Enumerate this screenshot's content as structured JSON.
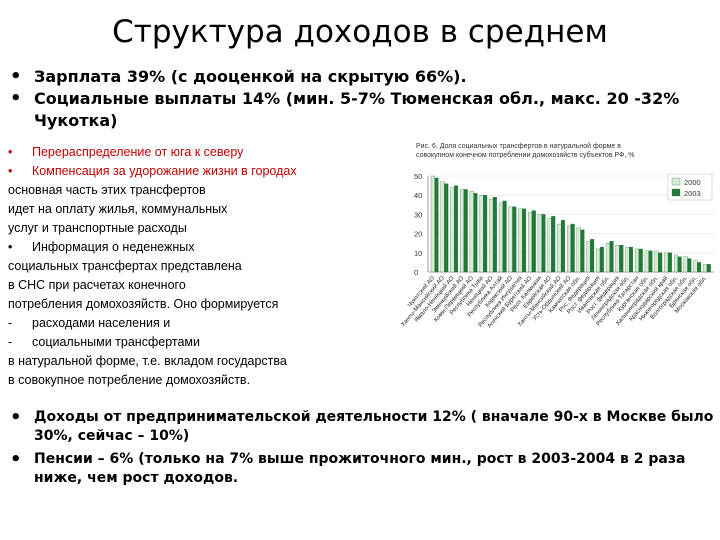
{
  "title": "Структура доходов в среднем",
  "top_bullets": [
    {
      "bullet": "•",
      "text": "Зарплата 39% (с дооценкой на скрытую 66%)."
    },
    {
      "bullet": "•",
      "text": "Социальные выплаты 14% (мин. 5-7% Тюменская обл., макс. 20 -32% Чукотка)"
    }
  ],
  "small_text": {
    "lines": [
      {
        "prefix": "•",
        "text": "Перераспределение от юга к северу",
        "red": true
      },
      {
        "prefix": "•",
        "text": "Компенсация за удорожание жизни в городах",
        "red": true
      },
      {
        "prefix": "",
        "text": "основная часть этих трансфертов",
        "red": false
      },
      {
        "prefix": "",
        "text": "идет на оплату жилья, коммунальных",
        "red": false
      },
      {
        "prefix": "",
        "text": "услуг и транспортные расходы",
        "red": false
      },
      {
        "prefix": "•",
        "text": "Информация о неденежных",
        "red": false
      },
      {
        "prefix": "",
        "text": "социальных трансфертах представлена",
        "red": false
      },
      {
        "prefix": "",
        "text": "в СНС при расчетах конечного",
        "red": false
      },
      {
        "prefix": "",
        "text": "потребления домохозяйств. Оно формируется",
        "red": false
      },
      {
        "prefix": "-",
        "text": "расходами населения и",
        "red": false
      },
      {
        "prefix": "-",
        "text": "социальными трансфертами",
        "red": false
      },
      {
        "prefix": "",
        "text": "в натуральной форме, т.е. вкладом государства",
        "red": false
      },
      {
        "prefix": "",
        "text": "в совокупное потребление домохозяйств.",
        "red": false
      }
    ]
  },
  "bottom_bullets": [
    {
      "bullet": "•",
      "text": "Доходы от предпринимательской деятельности 12% ( вначале 90-х в Москве было 30%, сейчас – 10%)"
    },
    {
      "bullet": "•",
      "text": "Пенсии – 6% (только на 7% выше прожиточного мин., рост в 2003-2004 в 2 раза ниже, чем рост доходов."
    }
  ],
  "chart_data": {
    "type": "bar",
    "title": "Рис. 6. Доля социальных трансфертов в натуральной форме в совокупном конечном потреблении домохозяйств субъектов РФ, %",
    "ylim": [
      0,
      50
    ],
    "yticks": [
      0,
      10,
      20,
      30,
      40,
      50
    ],
    "legend_position": "right",
    "categories": [
      "Чукотский АО",
      "Ханты-Мансийский АО",
      "Ямало-Ненецкий АО",
      "Эвенкийский АО",
      "Коми-Пермяцкий АО",
      "Республика Тыва",
      "Ненецкий АО",
      "Республика Алтай",
      "Корякский АО",
      "Республика Ингушетия",
      "Агинский Бурятский АО",
      "Респ. Калмыкия",
      "Еврейская АО",
      "Ханты-Мансийский АО ",
      "Усть-Ордынский АО",
      "Камчатская обл.",
      "Рос. Федерация",
      "Рост. федерация",
      "Ивановская обл.",
      "Рост. федерация ",
      "Ленинградская обл.",
      "Республика Татарстан",
      "Курганская обл.",
      "Калининградская обл.",
      "Краснодарский край",
      "Нижегородская обл.",
      "Волгоградская обл.",
      "Брянская обл.",
      "Московская обл."
    ],
    "series": [
      {
        "name": "2000",
        "color": "#d4ecd4",
        "values": [
          50,
          47,
          44,
          43,
          42,
          40,
          38,
          36,
          34,
          33,
          31,
          30,
          28,
          25,
          24,
          23,
          16,
          12,
          15,
          14,
          13,
          12,
          11,
          11,
          10,
          9,
          8,
          6,
          4
        ]
      },
      {
        "name": "2003",
        "color": "#1f7a3a",
        "values": [
          49,
          46,
          45,
          43,
          41,
          40,
          39,
          37,
          34,
          33,
          32,
          30,
          29,
          27,
          25,
          22,
          17,
          13,
          16,
          14,
          13,
          12,
          11,
          10,
          10,
          8,
          7,
          5,
          4
        ]
      }
    ]
  }
}
